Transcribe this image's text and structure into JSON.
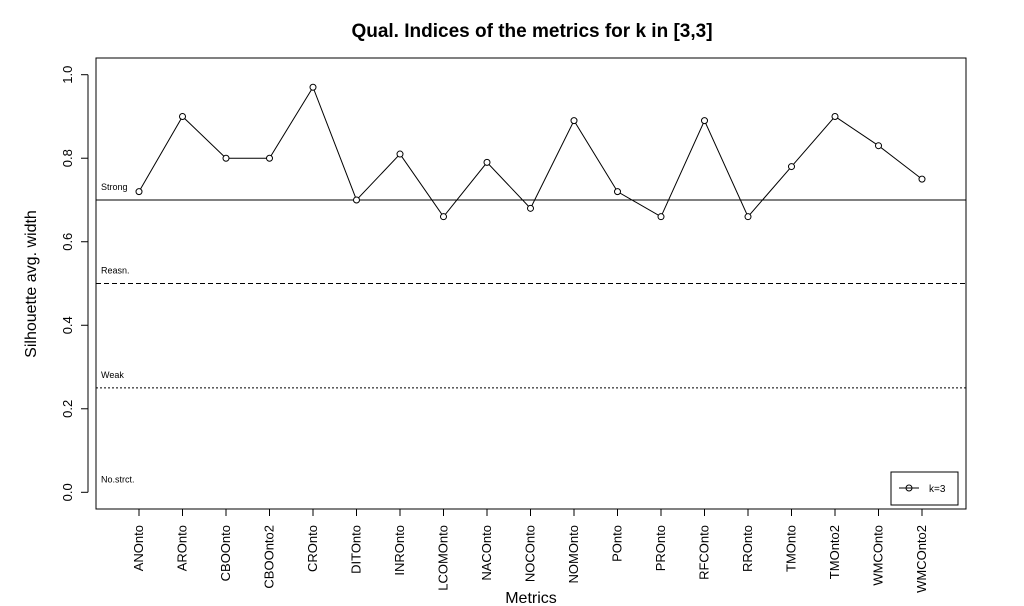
{
  "chart_data": {
    "type": "line",
    "title": "Qual. Indices of the metrics for k in [3,3]",
    "xlabel": "Metrics",
    "ylabel": "Silhouette avg. width",
    "ylim": [
      -0.04,
      1.04
    ],
    "yticks": [
      0.0,
      0.2,
      0.4,
      0.6,
      0.8,
      1.0
    ],
    "ytick_labels": [
      "0.0",
      "0.2",
      "0.4",
      "0.6",
      "0.8",
      "1.0"
    ],
    "categories": [
      "ANOnto",
      "AROnto",
      "CBOOnto",
      "CBOOnto2",
      "CROnto",
      "DITOnto",
      "INROnto",
      "LCOMOnto",
      "NACOnto",
      "NOCOnto",
      "NOMOnto",
      "POnto",
      "PROnto",
      "RFCOnto",
      "RROnto",
      "TMOnto",
      "TMOnto2",
      "WMCOnto",
      "WMCOnto2"
    ],
    "series": [
      {
        "name": "k=3",
        "values": [
          0.72,
          0.9,
          0.8,
          0.8,
          0.97,
          0.7,
          0.81,
          0.66,
          0.79,
          0.68,
          0.89,
          0.72,
          0.66,
          0.89,
          0.66,
          0.78,
          0.9,
          0.83,
          0.75
        ]
      }
    ],
    "reference_lines": [
      {
        "label": "Strong",
        "value": 0.7,
        "style": "solid"
      },
      {
        "label": "Reasn.",
        "value": 0.5,
        "style": "dashed"
      },
      {
        "label": "Weak",
        "value": 0.25,
        "style": "dotted"
      },
      {
        "label": "No.strct.",
        "value": 0.0,
        "style": "none"
      }
    ],
    "legend_position": "bottom-right",
    "grid": false
  }
}
